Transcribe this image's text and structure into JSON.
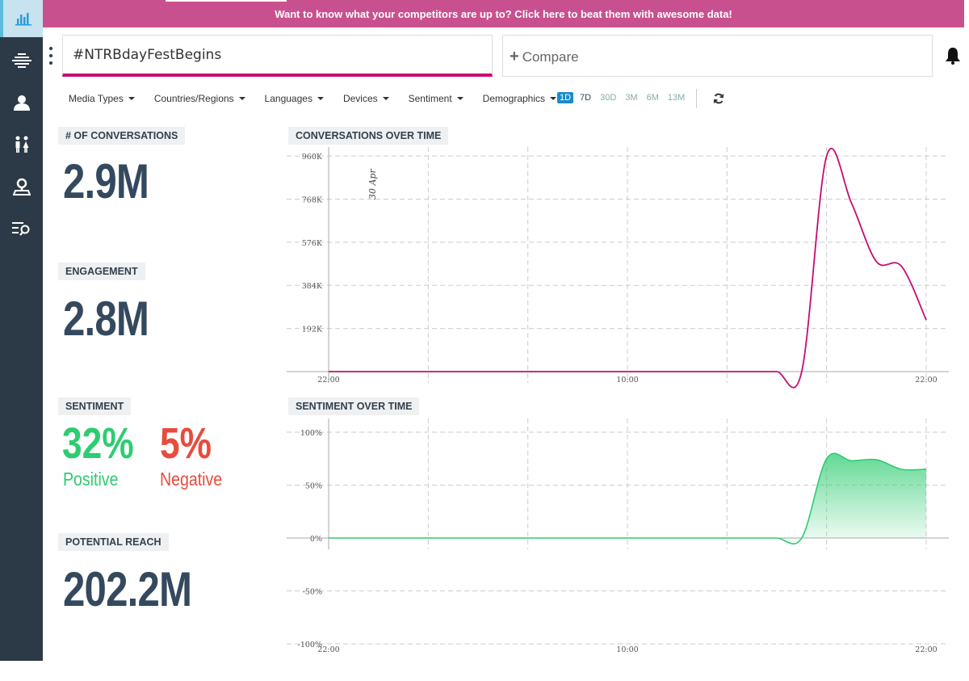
{
  "banner": {
    "text": "Want to know what your competitors are up to? Click here to beat them with awesome data!"
  },
  "sidebar": {
    "items": [
      {
        "icon": "bar-chart-icon"
      },
      {
        "icon": "stream-icon"
      },
      {
        "icon": "user-icon"
      },
      {
        "icon": "gender-icon"
      },
      {
        "icon": "location-icon"
      },
      {
        "icon": "search-list-icon"
      }
    ]
  },
  "search": {
    "query": "#NTRBdayFestBegins"
  },
  "compare": {
    "label": "Compare"
  },
  "filters": [
    "Media Types",
    "Countries/Regions",
    "Languages",
    "Devices",
    "Sentiment",
    "Demographics"
  ],
  "ranges": {
    "options": [
      "1D",
      "7D",
      "30D",
      "3M",
      "6M",
      "13M"
    ],
    "active": "1D"
  },
  "metrics": {
    "conversations": {
      "label": "# OF CONVERSATIONS",
      "value": "2.9M"
    },
    "engagement": {
      "label": "ENGAGEMENT",
      "value": "2.8M"
    },
    "sentiment": {
      "label": "SENTIMENT",
      "positive_value": "32%",
      "positive_label": "Positive",
      "negative_value": "5%",
      "negative_label": "Negative"
    },
    "reach": {
      "label": "POTENTIAL REACH",
      "value": "202.2M"
    }
  },
  "colors": {
    "accent": "#c70b71",
    "positive": "#2ecc71",
    "negative": "#e74c3c",
    "sidebar": "#2c3a47",
    "banner": "#c9508f",
    "number": "#34495e"
  },
  "chart_data": [
    {
      "type": "line",
      "title": "CONVERSATIONS OVER TIME",
      "annotation": "30 Apr",
      "y_ticks": [
        "960K",
        "768K",
        "576K",
        "384K",
        "192K"
      ],
      "x_ticks": [
        "22:00",
        "10:00",
        "22:00"
      ],
      "ylim": [
        0,
        1000000
      ],
      "x": [
        0,
        1,
        2,
        3,
        4,
        5,
        6,
        7,
        8,
        9,
        10,
        11,
        12,
        13,
        14,
        15,
        16,
        17,
        18,
        19,
        20,
        21,
        22,
        23,
        24
      ],
      "series": [
        {
          "color": "#c70b71",
          "values": [
            0,
            0,
            0,
            0,
            0,
            0,
            0,
            0,
            0,
            0,
            0,
            0,
            0,
            0,
            0,
            0,
            0,
            0,
            0,
            0,
            960000,
            750000,
            490000,
            470000,
            230000
          ]
        }
      ]
    },
    {
      "type": "area",
      "title": "SENTIMENT OVER TIME",
      "y_ticks": [
        "100%",
        "50%",
        "0%",
        "-50%",
        "-100%"
      ],
      "x_ticks": [
        "22:00",
        "10:00",
        "22:00"
      ],
      "ylim": [
        -100,
        100
      ],
      "x": [
        0,
        1,
        2,
        3,
        4,
        5,
        6,
        7,
        8,
        9,
        10,
        11,
        12,
        13,
        14,
        15,
        16,
        17,
        18,
        19,
        20,
        21,
        22,
        23,
        24
      ],
      "series": [
        {
          "color": "#2ecc71",
          "values": [
            0,
            0,
            0,
            0,
            0,
            0,
            0,
            0,
            0,
            0,
            0,
            0,
            0,
            0,
            0,
            0,
            0,
            0,
            0,
            0,
            75,
            73,
            74,
            65,
            65
          ]
        }
      ]
    }
  ]
}
